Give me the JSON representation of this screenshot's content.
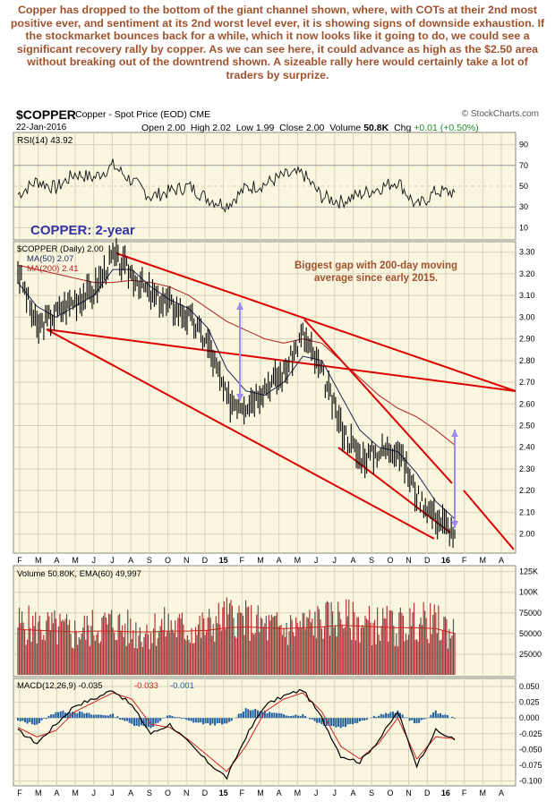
{
  "commentary": "Copper has dropped to the bottom of the giant channel shown, where, with COTs at their 2nd most positive ever, and sentiment at its 2nd worst level ever, it is showing signs of downside exhaustion. If the stockmarket bounces back for a while, which it now looks like it going to do, we could see a significant recovery rally by copper. As we can see here, it could advance as high as the $2.50 area without breaking out of the downtrend shown. A sizeable rally here would certainly take a lot of traders by surprize.",
  "header": {
    "symbol": "$COPPER",
    "name": "Copper - Spot Price (EOD) CME",
    "brand": "© StockCharts.com",
    "date": "22-Jan-2016",
    "open_label": "Open",
    "open": "2.00",
    "high_label": "High",
    "high": "2.02",
    "low_label": "Low",
    "low": "1.99",
    "close_label": "Close",
    "close": "2.00",
    "volume_label": "Volume",
    "volume": "50.8K",
    "chg_label": "Chg",
    "chg": "+0.01 (+0.50%)",
    "chg_color": "#1e8a1e"
  },
  "chart_data": [
    {
      "type": "line",
      "panel": "RSI",
      "legend": "RSI(14) 43.92",
      "y_ticks": [
        10,
        30,
        50,
        70,
        90
      ],
      "ylim": [
        0,
        100
      ],
      "overbought": 70,
      "oversold": 30,
      "x": [
        "2014-02",
        "2014-03",
        "2014-04",
        "2014-05",
        "2014-06",
        "2014-07",
        "2014-08",
        "2014-09",
        "2014-10",
        "2014-11",
        "2014-12",
        "2015-01",
        "2015-02",
        "2015-03",
        "2015-04",
        "2015-05",
        "2015-06",
        "2015-07",
        "2015-08",
        "2015-09",
        "2015-10",
        "2015-11",
        "2015-12",
        "2016-01"
      ],
      "values": [
        42,
        55,
        48,
        62,
        58,
        70,
        55,
        40,
        45,
        50,
        38,
        32,
        48,
        52,
        60,
        62,
        40,
        35,
        42,
        48,
        55,
        30,
        45,
        44
      ]
    },
    {
      "type": "line",
      "panel": "price",
      "label": "COPPER: 2-year",
      "legend": [
        "$COPPER (Daily) 2.00",
        "MA(50) 2.07",
        "MA(200) 2.41"
      ],
      "series_colors": [
        "#000000",
        "#1a2a5a",
        "#b22222"
      ],
      "annotation": "Biggest gap with 200-day moving average since early 2015.",
      "y_ticks": [
        2.0,
        2.1,
        2.2,
        2.3,
        2.4,
        2.5,
        2.6,
        2.7,
        2.8,
        2.9,
        3.0,
        3.1,
        3.2,
        3.3
      ],
      "ylim": [
        1.92,
        3.34
      ],
      "x": [
        "2014-02",
        "2014-03",
        "2014-04",
        "2014-05",
        "2014-06",
        "2014-07",
        "2014-08",
        "2014-09",
        "2014-10",
        "2014-11",
        "2014-12",
        "2015-01",
        "2015-02",
        "2015-03",
        "2015-04",
        "2015-05",
        "2015-06",
        "2015-07",
        "2015-08",
        "2015-09",
        "2015-10",
        "2015-11",
        "2015-12",
        "2016-01"
      ],
      "close": [
        3.22,
        2.95,
        3.02,
        3.08,
        3.12,
        3.28,
        3.2,
        3.1,
        3.06,
        3.0,
        2.88,
        2.62,
        2.6,
        2.68,
        2.74,
        2.92,
        2.74,
        2.5,
        2.35,
        2.38,
        2.4,
        2.18,
        2.08,
        2.0
      ],
      "ma50": [
        3.16,
        3.05,
        3.0,
        3.05,
        3.1,
        3.22,
        3.22,
        3.14,
        3.08,
        3.04,
        2.95,
        2.76,
        2.66,
        2.64,
        2.7,
        2.82,
        2.8,
        2.64,
        2.48,
        2.4,
        2.38,
        2.28,
        2.15,
        2.07
      ],
      "ma200": [
        3.24,
        3.22,
        3.2,
        3.18,
        3.16,
        3.16,
        3.17,
        3.16,
        3.14,
        3.1,
        3.04,
        2.98,
        2.94,
        2.9,
        2.88,
        2.9,
        2.88,
        2.8,
        2.72,
        2.64,
        2.58,
        2.54,
        2.48,
        2.41
      ]
    },
    {
      "type": "bar",
      "panel": "volume",
      "legend": "Volume 50.80K, EMA(60) 49,997",
      "y_ticks": [
        "25000",
        "50000",
        "75000",
        "100K",
        "125K"
      ],
      "y_tick_values": [
        25000,
        50000,
        75000,
        100000,
        125000
      ],
      "ylim": [
        0,
        130000
      ],
      "x": [
        "2014-02",
        "2014-03",
        "2014-04",
        "2014-05",
        "2014-06",
        "2014-07",
        "2014-08",
        "2014-09",
        "2014-10",
        "2014-11",
        "2014-12",
        "2015-01",
        "2015-02",
        "2015-03",
        "2015-04",
        "2015-05",
        "2015-06",
        "2015-07",
        "2015-08",
        "2015-09",
        "2015-10",
        "2015-11",
        "2015-12",
        "2016-01"
      ],
      "values": [
        62000,
        58000,
        55000,
        50000,
        57000,
        63000,
        52000,
        55000,
        60000,
        54000,
        58000,
        72000,
        66000,
        58000,
        55000,
        60000,
        65000,
        70000,
        62000,
        60000,
        58000,
        65000,
        62000,
        51000
      ],
      "ema60": [
        55000,
        54000,
        53000,
        52000,
        53000,
        53000,
        52000,
        52000,
        53000,
        53000,
        54000,
        57000,
        58000,
        57000,
        56000,
        57000,
        58000,
        60000,
        59000,
        58000,
        57000,
        57000,
        56000,
        50000
      ]
    },
    {
      "type": "line",
      "panel": "MACD",
      "legend": [
        "MACD(12,26,9) -0.035",
        "-0.033",
        "-0.001"
      ],
      "y_ticks": [
        0.05,
        0.025,
        0.0,
        -0.025,
        -0.05,
        -0.075,
        -0.1
      ],
      "y_tick_labels": [
        "0.050",
        "0.025",
        "0.000",
        "-0.025",
        "-0.050",
        "-0.075",
        "-0.100"
      ],
      "ylim": [
        -0.105,
        0.06
      ],
      "x": [
        "2014-02",
        "2014-03",
        "2014-04",
        "2014-05",
        "2014-06",
        "2014-07",
        "2014-08",
        "2014-09",
        "2014-10",
        "2014-11",
        "2014-12",
        "2015-01",
        "2015-02",
        "2015-03",
        "2015-04",
        "2015-05",
        "2015-06",
        "2015-07",
        "2015-08",
        "2015-09",
        "2015-10",
        "2015-11",
        "2015-12",
        "2016-01"
      ],
      "macd": [
        -0.02,
        -0.04,
        -0.01,
        0.02,
        0.03,
        0.045,
        0.02,
        -0.025,
        -0.01,
        -0.04,
        -0.07,
        -0.095,
        -0.03,
        0.02,
        0.035,
        0.045,
        0.0,
        -0.06,
        -0.07,
        -0.035,
        0.01,
        -0.075,
        -0.02,
        -0.035
      ],
      "signal": [
        -0.015,
        -0.03,
        -0.02,
        0.01,
        0.025,
        0.04,
        0.03,
        -0.01,
        -0.015,
        -0.035,
        -0.06,
        -0.085,
        -0.045,
        0.01,
        0.03,
        0.04,
        0.01,
        -0.045,
        -0.065,
        -0.04,
        0.0,
        -0.065,
        -0.03,
        -0.033
      ],
      "histogram": [
        -0.005,
        -0.01,
        0.01,
        0.01,
        0.005,
        0.005,
        -0.01,
        -0.015,
        0.005,
        -0.005,
        -0.01,
        -0.01,
        0.015,
        0.01,
        0.005,
        0.005,
        -0.01,
        -0.015,
        -0.005,
        0.005,
        0.01,
        -0.01,
        0.01,
        -0.001
      ],
      "series_colors": [
        "#000000",
        "#cc2222",
        "#1f5fa0"
      ]
    }
  ],
  "x_axis_labels": [
    "F",
    "M",
    "A",
    "M",
    "J",
    "J",
    "A",
    "S",
    "O",
    "N",
    "D",
    "15",
    "F",
    "M",
    "A",
    "M",
    "J",
    "J",
    "A",
    "S",
    "O",
    "N",
    "D",
    "16",
    "F",
    "M",
    "A"
  ],
  "colors": {
    "panel_bg": "#faf6e0",
    "trend": "#dd0000",
    "arrow": "#9a8cf0",
    "label_blue": "#3333aa",
    "annotation": "#a0522d"
  }
}
